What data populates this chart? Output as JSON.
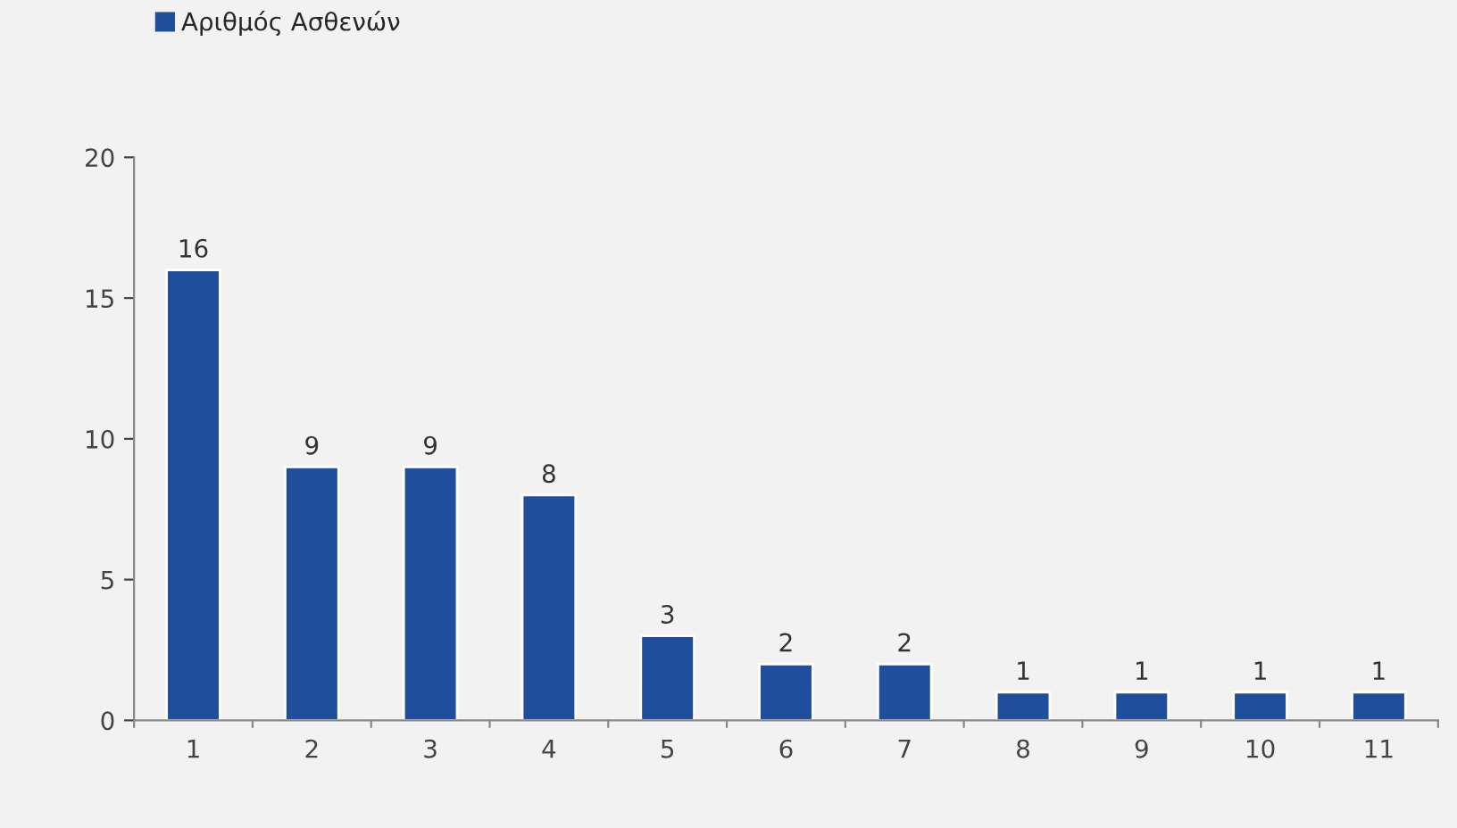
{
  "chart_data": {
    "type": "bar",
    "categories": [
      "1",
      "2",
      "3",
      "4",
      "5",
      "6",
      "7",
      "8",
      "9",
      "10",
      "11"
    ],
    "series": [
      {
        "name": "Αριθμός Ασθενών",
        "color": "#1f4e9c",
        "values": [
          16,
          9,
          9,
          8,
          3,
          2,
          2,
          1,
          1,
          1,
          1
        ]
      }
    ],
    "ylim": [
      0,
      20
    ],
    "yticks": [
      0,
      5,
      10,
      15,
      20
    ],
    "data_labels": true,
    "grid": false,
    "legend": "top left"
  }
}
